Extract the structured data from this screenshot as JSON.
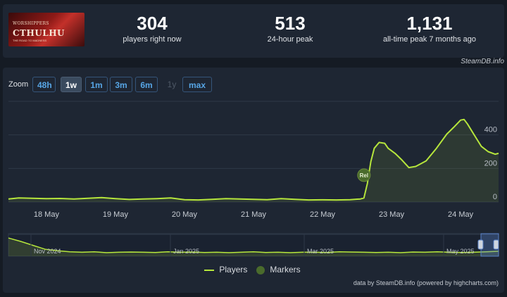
{
  "game": {
    "image_line1": "WORSHIPPERS",
    "image_line2": "CTHULHU",
    "image_line3": "THE ROAD TO MADNESS"
  },
  "stats": [
    {
      "value": "304",
      "label": "players right now"
    },
    {
      "value": "513",
      "label": "24-hour peak"
    },
    {
      "value": "1,131",
      "label": "all-time peak 7 months ago"
    }
  ],
  "credit_top": "SteamDB.info",
  "zoom": {
    "label": "Zoom",
    "buttons": [
      "48h",
      "1w",
      "1m",
      "3m",
      "6m",
      "1y",
      "max"
    ],
    "active": "1w",
    "disabled": [
      "1y"
    ]
  },
  "legend": {
    "players": "Players",
    "markers": "Markers"
  },
  "credit_bottom": "data by SteamDB.info (powered by highcharts.com)",
  "colors": {
    "line": "#b6e63c",
    "marker": "#4a6b2c",
    "grid": "#2e3847"
  },
  "chart_data": {
    "type": "line",
    "x_tick_labels": [
      "18 May",
      "19 May",
      "20 May",
      "21 May",
      "22 May",
      "23 May",
      "24 May"
    ],
    "y_tick_labels": [
      "0",
      "200",
      "400"
    ],
    "ylim": [
      0,
      600
    ],
    "xlim": [
      -0.55,
      6.55
    ],
    "marker": {
      "label": "Rel",
      "x": 4.6,
      "y": 160
    },
    "series": [
      {
        "name": "Players",
        "x": [
          -0.55,
          -0.4,
          -0.2,
          0.0,
          0.2,
          0.4,
          0.6,
          0.8,
          1.0,
          1.2,
          1.4,
          1.6,
          1.8,
          2.0,
          2.2,
          2.4,
          2.6,
          2.8,
          3.0,
          3.2,
          3.4,
          3.6,
          3.8,
          4.0,
          4.2,
          4.4,
          4.55,
          4.6,
          4.65,
          4.7,
          4.75,
          4.82,
          4.9,
          4.95,
          5.05,
          5.15,
          5.25,
          5.35,
          5.5,
          5.65,
          5.8,
          5.9,
          6.0,
          6.05,
          6.1,
          6.2,
          6.3,
          6.4,
          6.5,
          6.55
        ],
        "y": [
          18,
          24,
          22,
          20,
          21,
          18,
          22,
          26,
          20,
          15,
          18,
          20,
          24,
          14,
          12,
          16,
          20,
          18,
          16,
          14,
          20,
          16,
          12,
          13,
          12,
          14,
          18,
          24,
          110,
          240,
          320,
          355,
          350,
          320,
          290,
          250,
          205,
          212,
          245,
          320,
          405,
          445,
          488,
          492,
          465,
          398,
          332,
          300,
          285,
          290
        ]
      }
    ]
  },
  "navigator": {
    "x_tick_labels": [
      "Nov 2024",
      "Jan 2025",
      "Mar 2025",
      "May 2025"
    ]
  }
}
